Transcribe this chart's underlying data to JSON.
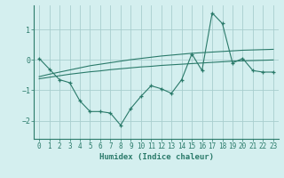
{
  "x": [
    0,
    1,
    2,
    3,
    4,
    5,
    6,
    7,
    8,
    9,
    10,
    11,
    12,
    13,
    14,
    15,
    16,
    17,
    18,
    19,
    20,
    21,
    22,
    23
  ],
  "y_main": [
    0.05,
    -0.3,
    -0.65,
    -0.75,
    -1.35,
    -1.7,
    -1.7,
    -1.75,
    -2.15,
    -1.6,
    -1.2,
    -0.85,
    -0.95,
    -1.1,
    -0.65,
    0.2,
    -0.35,
    1.55,
    1.2,
    -0.1,
    0.05,
    -0.35,
    -0.4,
    -0.4
  ],
  "y_trend1": [
    -0.55,
    -0.47,
    -0.4,
    -0.33,
    -0.26,
    -0.19,
    -0.14,
    -0.09,
    -0.04,
    0.01,
    0.05,
    0.09,
    0.13,
    0.16,
    0.19,
    0.22,
    0.24,
    0.26,
    0.28,
    0.3,
    0.32,
    0.33,
    0.34,
    0.35
  ],
  "y_trend2": [
    -0.62,
    -0.57,
    -0.52,
    -0.47,
    -0.43,
    -0.39,
    -0.36,
    -0.32,
    -0.29,
    -0.26,
    -0.23,
    -0.21,
    -0.18,
    -0.16,
    -0.14,
    -0.12,
    -0.1,
    -0.08,
    -0.06,
    -0.04,
    -0.03,
    -0.02,
    -0.01,
    0.0
  ],
  "line_color": "#2a7a6a",
  "bg_color": "#d4efef",
  "grid_color": "#a8cece",
  "xlabel": "Humidex (Indice chaleur)",
  "xlim": [
    -0.5,
    23.5
  ],
  "ylim": [
    -2.6,
    1.8
  ],
  "yticks": [
    -2,
    -1,
    0,
    1
  ],
  "xticks": [
    0,
    1,
    2,
    3,
    4,
    5,
    6,
    7,
    8,
    9,
    10,
    11,
    12,
    13,
    14,
    15,
    16,
    17,
    18,
    19,
    20,
    21,
    22,
    23
  ],
  "xlabel_fontsize": 6.5,
  "tick_fontsize": 5.5
}
